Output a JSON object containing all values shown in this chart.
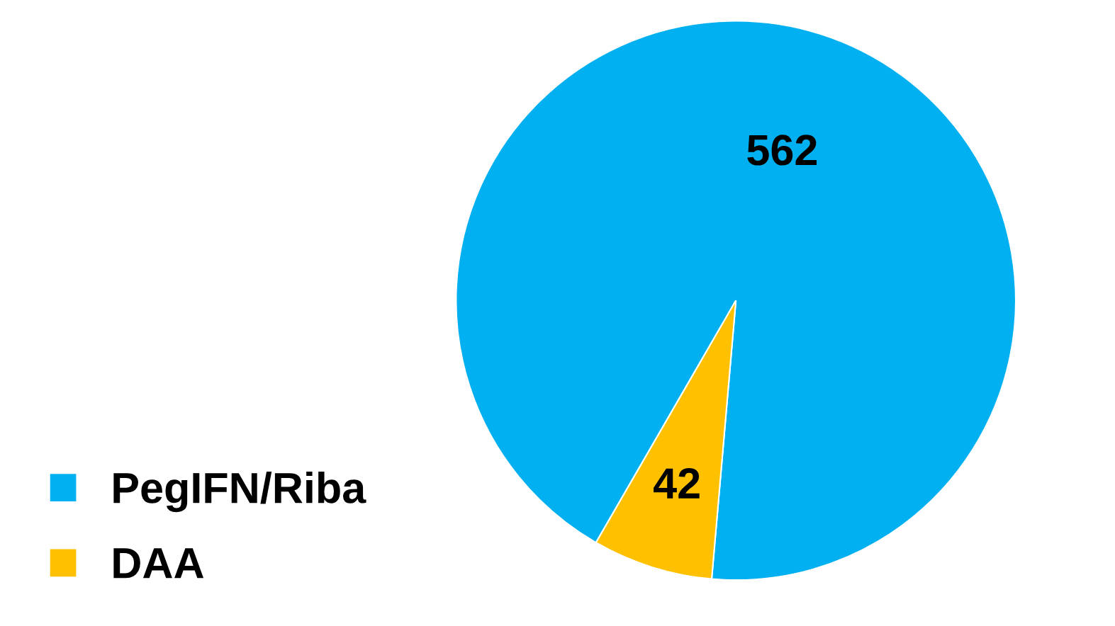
{
  "chart_data": {
    "type": "pie",
    "categories": [
      "PegIFN/Riba",
      "DAA"
    ],
    "values": [
      562,
      42
    ],
    "colors": [
      "#00b0f0",
      "#ffc000"
    ],
    "data_labels": true,
    "legend": "bottom left"
  }
}
